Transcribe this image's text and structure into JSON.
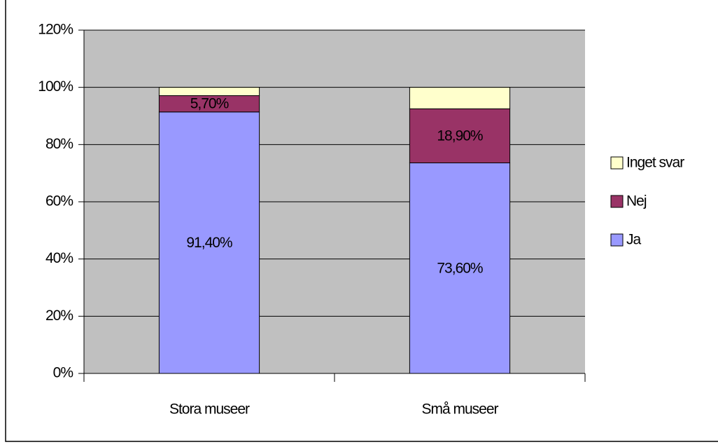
{
  "chart_data": {
    "type": "stacked_bar",
    "categories": [
      "Stora museer",
      "Små museer"
    ],
    "series": [
      {
        "name": "Ja",
        "color": "#9999ff",
        "values": [
          91.4,
          73.6
        ],
        "value_labels": [
          "91,40%",
          "73,60%"
        ]
      },
      {
        "name": "Nej",
        "color": "#993366",
        "values": [
          5.7,
          18.9
        ],
        "value_labels": [
          "5,70%",
          "18,90%"
        ]
      },
      {
        "name": "Inget svar",
        "color": "#ffffcc",
        "values": [
          2.9,
          7.5
        ]
      }
    ],
    "ylim": [
      0,
      120
    ],
    "yticks": [
      {
        "value": 0,
        "label": "0%"
      },
      {
        "value": 20,
        "label": "20%"
      },
      {
        "value": 40,
        "label": "40%"
      },
      {
        "value": 60,
        "label": "60%"
      },
      {
        "value": 80,
        "label": "80%"
      },
      {
        "value": 100,
        "label": "100%"
      },
      {
        "value": 120,
        "label": "120%"
      }
    ],
    "grid": true,
    "plot_background": "#c0c0c0",
    "legend": "right"
  }
}
